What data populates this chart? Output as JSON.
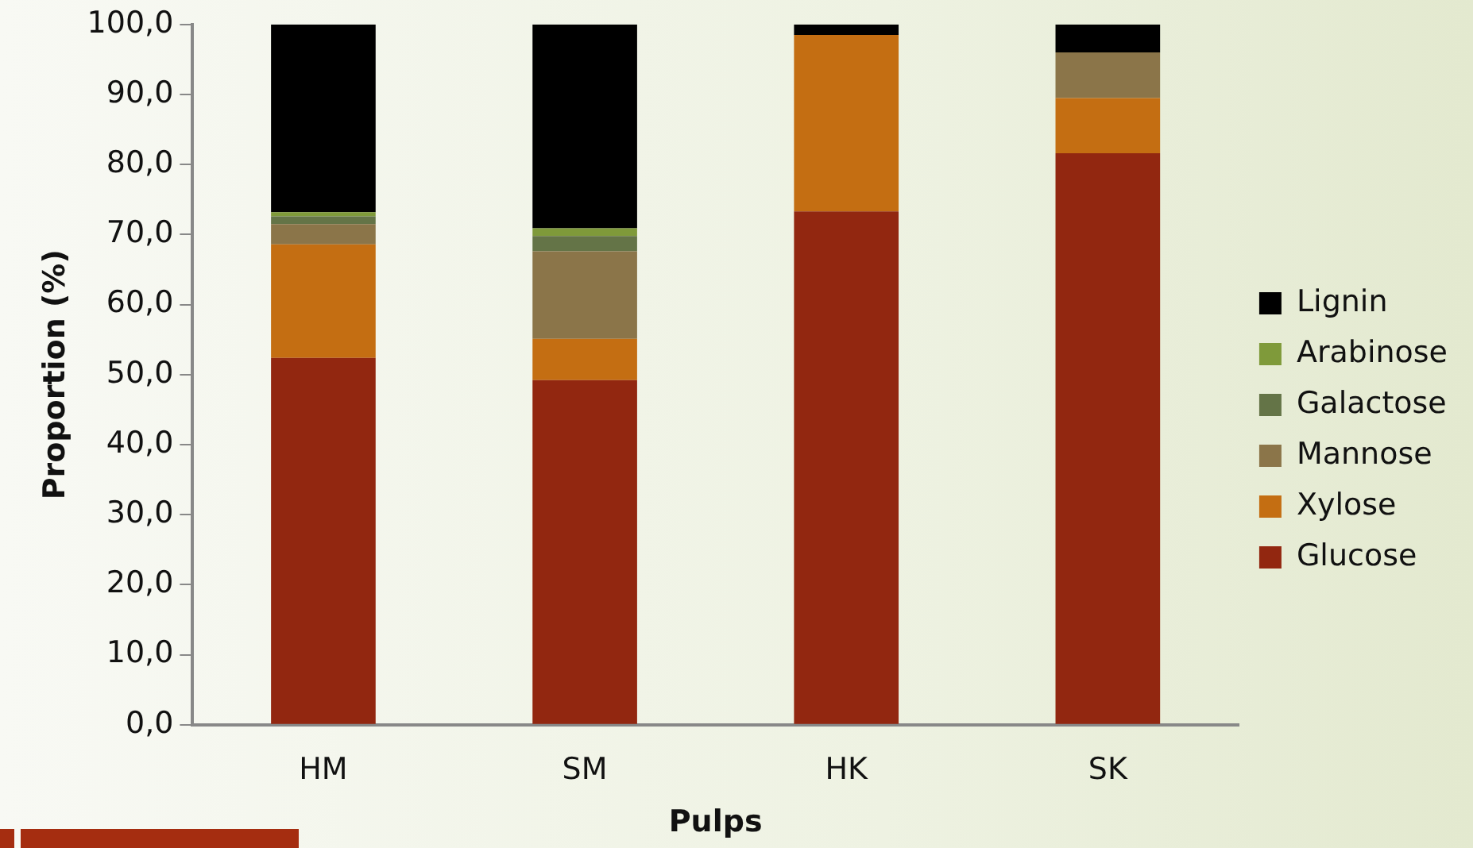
{
  "chart_data": {
    "type": "bar",
    "stacked": true,
    "xlabel": "Pulps",
    "ylabel": "Proportion (%)",
    "categories": [
      "HM",
      "SM",
      "HK",
      "SK"
    ],
    "series": [
      {
        "name": "Glucose",
        "color": "#922710",
        "values": [
          52.4,
          49.2,
          73.3,
          81.6
        ]
      },
      {
        "name": "Xylose",
        "color": "#c46e12",
        "values": [
          16.2,
          5.9,
          25.2,
          7.9
        ]
      },
      {
        "name": "Mannose",
        "color": "#8b7549",
        "values": [
          2.9,
          12.5,
          0,
          6.5
        ]
      },
      {
        "name": "Galactose",
        "color": "#647447",
        "values": [
          1.1,
          2.2,
          0,
          null
        ]
      },
      {
        "name": "Arabinose",
        "color": "#7f9a3a",
        "values": [
          0.6,
          1.1,
          0,
          0
        ]
      },
      {
        "name": "Lignin",
        "color": "#000000",
        "values": [
          26.8,
          29.1,
          1.5,
          4.0
        ]
      }
    ],
    "ylim": [
      0,
      100
    ],
    "yticks": [
      {
        "value": 0,
        "label": "0,0"
      },
      {
        "value": 10,
        "label": "10,0"
      },
      {
        "value": 20,
        "label": "20,0"
      },
      {
        "value": 30,
        "label": "30,0"
      },
      {
        "value": 40,
        "label": "40,0"
      },
      {
        "value": 50,
        "label": "50,0"
      },
      {
        "value": 60,
        "label": "60,0"
      },
      {
        "value": 70,
        "label": "70,0"
      },
      {
        "value": 80,
        "label": "80,0"
      },
      {
        "value": 90,
        "label": "90,0"
      },
      {
        "value": 100,
        "label": "100,0"
      }
    ],
    "grid": false,
    "legend": "right"
  }
}
